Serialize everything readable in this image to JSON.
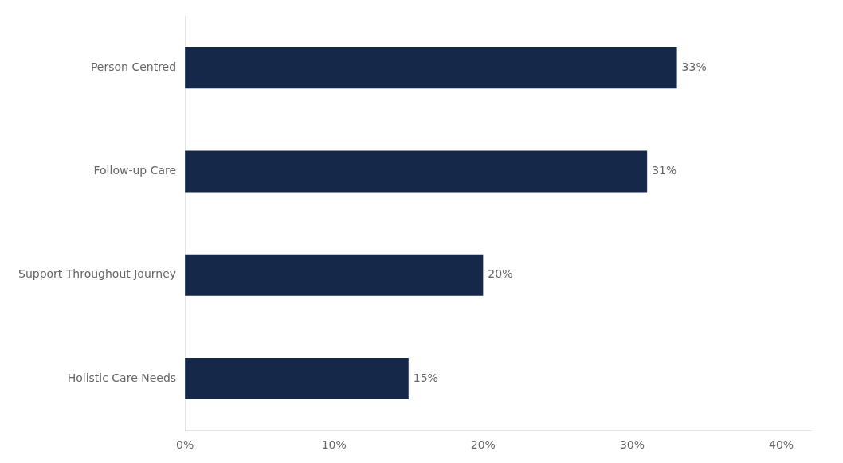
{
  "chart_data": {
    "type": "bar",
    "orientation": "horizontal",
    "categories": [
      "Holistic Care Needs",
      "Support Throughout Journey",
      "Follow-up Care",
      "Person Centred"
    ],
    "values": [
      0.15,
      0.2,
      0.31,
      0.33
    ],
    "value_labels": [
      "15%",
      "20%",
      "31%",
      "33%"
    ],
    "color": "#16284a",
    "xlim": [
      0,
      0.42
    ],
    "xticks": [
      {
        "value": 0,
        "label": "0%"
      },
      {
        "value": 0.1,
        "label": "10%"
      },
      {
        "value": 0.2,
        "label": "20%"
      },
      {
        "value": 0.3,
        "label": "30%"
      },
      {
        "value": 0.4,
        "label": "40%"
      }
    ],
    "grid": false,
    "data_labels": true
  }
}
